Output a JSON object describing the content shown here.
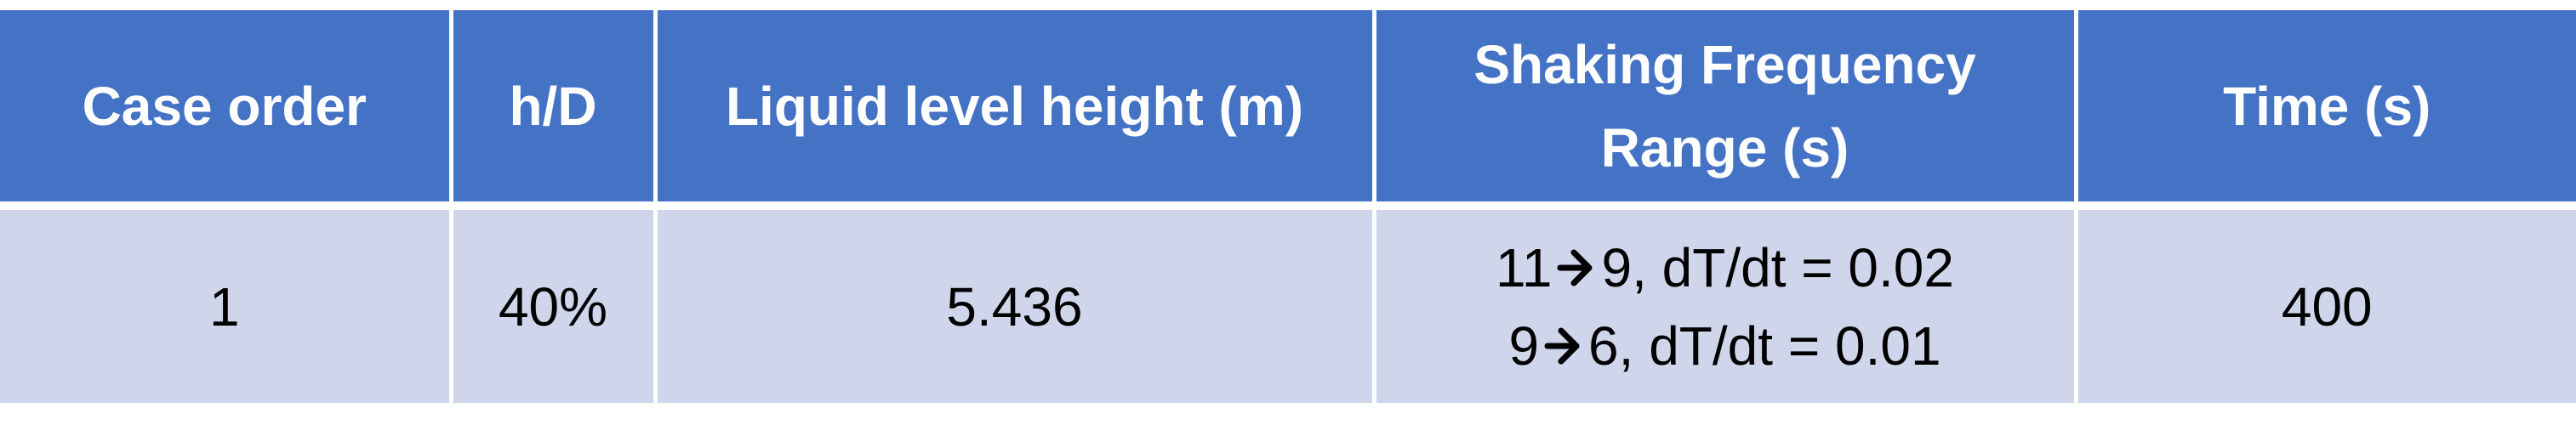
{
  "table": {
    "headers": [
      "Case order",
      "h/D",
      "Liquid level height (m)",
      "Shaking Frequency Range (s)",
      "Time (s)"
    ],
    "rows": [
      {
        "case_order": "1",
        "h_over_d": "40%",
        "liquid_level_height": "5.436",
        "frequency_range": [
          {
            "from": "11",
            "to": "9, dT/dt = 0.02"
          },
          {
            "from": "9",
            "to": "6, dT/dt = 0.01"
          }
        ],
        "time": "400"
      }
    ],
    "arrow_icon": "right-arrow-icon",
    "colors": {
      "header_bg": "#4472c4",
      "header_text": "#ffffff",
      "row_bg": "#cfd5ea",
      "row_text": "#000000",
      "grid_lines": "#ffffff"
    }
  }
}
